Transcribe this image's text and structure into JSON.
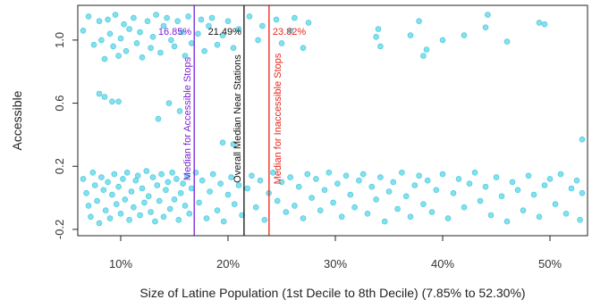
{
  "chart_data": {
    "type": "scatter",
    "title": "",
    "xlabel": "Size of Latine Population (1st Decile to 8th Decile) (7.85% to 52.30%)",
    "ylabel": "Accessible",
    "xlim": [
      0.06,
      0.535
    ],
    "ylim": [
      -0.24,
      1.22
    ],
    "x_ticks": [
      0.1,
      0.2,
      0.3,
      0.4,
      0.5
    ],
    "x_tick_labels": [
      "10%",
      "20%",
      "30%",
      "40%",
      "50%"
    ],
    "y_ticks": [
      -0.2,
      0.2,
      0.6,
      1.0
    ],
    "y_tick_labels": [
      "-0.2",
      "0.2",
      "0.6",
      "1.0"
    ],
    "grid": false,
    "point_color": "#5ad6e8",
    "point_edge_color": "#3fc4d8",
    "reference_lines": [
      {
        "x": 0.1685,
        "label": "Median for Accessible Stops",
        "value_label": "16.85%",
        "color": "#7b1fd6"
      },
      {
        "x": 0.2149,
        "label": "Overall Median Near Stations",
        "value_label": "21.49%",
        "color": "#111111"
      },
      {
        "x": 0.2382,
        "label": "Median for Inaccessible Stops",
        "value_label": "23.82%",
        "color": "#e8261b"
      }
    ],
    "points": [
      [
        0.065,
        1.06
      ],
      [
        0.07,
        1.15
      ],
      [
        0.075,
        0.97
      ],
      [
        0.08,
        1.12
      ],
      [
        0.082,
        1.0
      ],
      [
        0.085,
        0.88
      ],
      [
        0.088,
        1.13
      ],
      [
        0.09,
        1.04
      ],
      [
        0.093,
        0.96
      ],
      [
        0.095,
        1.16
      ],
      [
        0.098,
        0.9
      ],
      [
        0.1,
        1.01
      ],
      [
        0.103,
        1.1
      ],
      [
        0.105,
        0.93
      ],
      [
        0.108,
        1.07
      ],
      [
        0.112,
        1.14
      ],
      [
        0.115,
        0.98
      ],
      [
        0.118,
        1.05
      ],
      [
        0.12,
        0.89
      ],
      [
        0.125,
        1.12
      ],
      [
        0.128,
        0.95
      ],
      [
        0.13,
        1.02
      ],
      [
        0.133,
        1.16
      ],
      [
        0.137,
        0.92
      ],
      [
        0.14,
        1.09
      ],
      [
        0.143,
        1.14
      ],
      [
        0.147,
        1.0
      ],
      [
        0.15,
        0.96
      ],
      [
        0.153,
        1.12
      ],
      [
        0.157,
        1.05
      ],
      [
        0.16,
        0.9
      ],
      [
        0.163,
        1.15
      ],
      [
        0.166,
        0.98
      ],
      [
        0.172,
        1.04
      ],
      [
        0.175,
        1.13
      ],
      [
        0.178,
        0.93
      ],
      [
        0.182,
        1.09
      ],
      [
        0.185,
        1.14
      ],
      [
        0.19,
        0.97
      ],
      [
        0.195,
        1.03
      ],
      [
        0.2,
        1.12
      ],
      [
        0.205,
        0.95
      ],
      [
        0.21,
        1.07
      ],
      [
        0.22,
        1.15
      ],
      [
        0.228,
        1.0
      ],
      [
        0.232,
        1.09
      ],
      [
        0.245,
        1.13
      ],
      [
        0.25,
        0.98
      ],
      [
        0.258,
        1.06
      ],
      [
        0.262,
        1.14
      ],
      [
        0.27,
        0.95
      ],
      [
        0.275,
        1.11
      ],
      [
        0.338,
        1.02
      ],
      [
        0.342,
        0.96
      ],
      [
        0.34,
        1.07
      ],
      [
        0.37,
        1.03
      ],
      [
        0.378,
        1.12
      ],
      [
        0.382,
        0.9
      ],
      [
        0.385,
        0.94
      ],
      [
        0.4,
        1.0
      ],
      [
        0.42,
        1.03
      ],
      [
        0.44,
        1.08
      ],
      [
        0.442,
        1.16
      ],
      [
        0.46,
        0.99
      ],
      [
        0.49,
        1.11
      ],
      [
        0.495,
        1.1
      ],
      [
        0.08,
        0.66
      ],
      [
        0.085,
        0.64
      ],
      [
        0.092,
        0.61
      ],
      [
        0.098,
        0.61
      ],
      [
        0.135,
        0.5
      ],
      [
        0.145,
        0.6
      ],
      [
        0.155,
        0.55
      ],
      [
        0.195,
        0.35
      ],
      [
        0.205,
        0.34
      ],
      [
        0.53,
        0.37
      ],
      [
        0.065,
        0.12
      ],
      [
        0.068,
        0.03
      ],
      [
        0.07,
        -0.05
      ],
      [
        0.072,
        -0.12
      ],
      [
        0.074,
        0.16
      ],
      [
        0.076,
        0.08
      ],
      [
        0.078,
        -0.02
      ],
      [
        0.08,
        -0.16
      ],
      [
        0.082,
        0.13
      ],
      [
        0.084,
        0.05
      ],
      [
        0.086,
        -0.08
      ],
      [
        0.088,
        0.1
      ],
      [
        0.09,
        -0.13
      ],
      [
        0.092,
        0.02
      ],
      [
        0.094,
        0.15
      ],
      [
        0.096,
        -0.04
      ],
      [
        0.098,
        0.07
      ],
      [
        0.1,
        -0.1
      ],
      [
        0.102,
        0.12
      ],
      [
        0.104,
        -0.01
      ],
      [
        0.106,
        0.16
      ],
      [
        0.108,
        -0.14
      ],
      [
        0.11,
        0.04
      ],
      [
        0.112,
        -0.06
      ],
      [
        0.114,
        0.11
      ],
      [
        0.116,
        0.14
      ],
      [
        0.118,
        -0.11
      ],
      [
        0.12,
        0.06
      ],
      [
        0.122,
        -0.03
      ],
      [
        0.124,
        0.17
      ],
      [
        0.126,
        0.01
      ],
      [
        0.128,
        -0.09
      ],
      [
        0.13,
        0.13
      ],
      [
        0.132,
        -0.15
      ],
      [
        0.134,
        0.08
      ],
      [
        0.136,
        -0.02
      ],
      [
        0.138,
        0.15
      ],
      [
        0.14,
        -0.12
      ],
      [
        0.142,
        0.05
      ],
      [
        0.144,
        0.1
      ],
      [
        0.146,
        -0.07
      ],
      [
        0.148,
        0.16
      ],
      [
        0.15,
        -0.01
      ],
      [
        0.152,
        0.12
      ],
      [
        0.154,
        -0.14
      ],
      [
        0.156,
        0.03
      ],
      [
        0.158,
        0.09
      ],
      [
        0.16,
        -0.05
      ],
      [
        0.162,
        0.14
      ],
      [
        0.164,
        -0.1
      ],
      [
        0.166,
        0.06
      ],
      [
        0.17,
        0.16
      ],
      [
        0.173,
        -0.03
      ],
      [
        0.176,
        0.11
      ],
      [
        0.18,
        -0.13
      ],
      [
        0.183,
        0.04
      ],
      [
        0.186,
        0.15
      ],
      [
        0.19,
        -0.08
      ],
      [
        0.193,
        0.09
      ],
      [
        0.196,
        -0.15
      ],
      [
        0.2,
        0.02
      ],
      [
        0.203,
        0.13
      ],
      [
        0.206,
        -0.04
      ],
      [
        0.21,
        0.08
      ],
      [
        0.213,
        -0.11
      ],
      [
        0.218,
        0.06
      ],
      [
        0.222,
        0.14
      ],
      [
        0.226,
        -0.06
      ],
      [
        0.23,
        0.11
      ],
      [
        0.234,
        -0.14
      ],
      [
        0.238,
        0.03
      ],
      [
        0.242,
        0.16
      ],
      [
        0.246,
        -0.02
      ],
      [
        0.25,
        0.1
      ],
      [
        0.254,
        -0.09
      ],
      [
        0.258,
        0.13
      ],
      [
        0.262,
        -0.05
      ],
      [
        0.266,
        0.07
      ],
      [
        0.27,
        -0.13
      ],
      [
        0.274,
        0.15
      ],
      [
        0.278,
        0.0
      ],
      [
        0.282,
        0.12
      ],
      [
        0.286,
        -0.08
      ],
      [
        0.29,
        0.05
      ],
      [
        0.294,
        0.16
      ],
      [
        0.298,
        -0.03
      ],
      [
        0.302,
        0.09
      ],
      [
        0.306,
        -0.12
      ],
      [
        0.31,
        0.14
      ],
      [
        0.314,
        0.02
      ],
      [
        0.318,
        -0.06
      ],
      [
        0.322,
        0.11
      ],
      [
        0.326,
        0.15
      ],
      [
        0.33,
        -0.1
      ],
      [
        0.334,
        0.07
      ],
      [
        0.338,
        -0.01
      ],
      [
        0.342,
        0.13
      ],
      [
        0.346,
        -0.15
      ],
      [
        0.35,
        0.04
      ],
      [
        0.354,
        0.1
      ],
      [
        0.358,
        -0.07
      ],
      [
        0.362,
        0.16
      ],
      [
        0.366,
        0.01
      ],
      [
        0.37,
        -0.12
      ],
      [
        0.374,
        0.08
      ],
      [
        0.378,
        0.14
      ],
      [
        0.382,
        -0.04
      ],
      [
        0.386,
        0.11
      ],
      [
        0.39,
        -0.09
      ],
      [
        0.394,
        0.05
      ],
      [
        0.4,
        0.15
      ],
      [
        0.405,
        -0.13
      ],
      [
        0.41,
        0.03
      ],
      [
        0.415,
        0.12
      ],
      [
        0.42,
        -0.06
      ],
      [
        0.425,
        0.09
      ],
      [
        0.43,
        0.16
      ],
      [
        0.435,
        -0.02
      ],
      [
        0.44,
        0.07
      ],
      [
        0.445,
        -0.11
      ],
      [
        0.45,
        0.13
      ],
      [
        0.455,
        0.01
      ],
      [
        0.46,
        -0.15
      ],
      [
        0.465,
        0.1
      ],
      [
        0.47,
        0.05
      ],
      [
        0.475,
        -0.08
      ],
      [
        0.48,
        0.14
      ],
      [
        0.485,
        0.02
      ],
      [
        0.49,
        -0.12
      ],
      [
        0.495,
        0.08
      ],
      [
        0.5,
        0.12
      ],
      [
        0.505,
        -0.04
      ],
      [
        0.51,
        0.15
      ],
      [
        0.515,
        -0.1
      ],
      [
        0.52,
        0.06
      ],
      [
        0.525,
        0.11
      ],
      [
        0.528,
        -0.14
      ],
      [
        0.53,
        0.03
      ]
    ]
  }
}
